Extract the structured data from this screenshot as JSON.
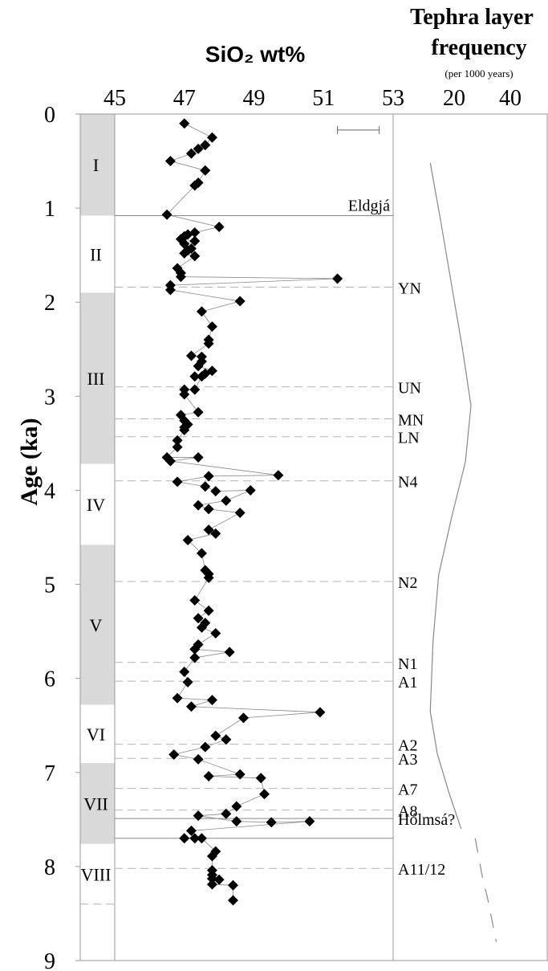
{
  "chart_data": {
    "type": "scatter",
    "title": "SiO₂ wt%",
    "ylabel": "Age (ka)",
    "xlim": [
      45,
      53
    ],
    "ylim": [
      9,
      0
    ],
    "x_ticks": [
      "45",
      "47",
      "49",
      "51",
      "53"
    ],
    "y_ticks": [
      "0",
      "1",
      "2",
      "3",
      "4",
      "5",
      "6",
      "7",
      "8",
      "9"
    ],
    "series": [
      {
        "points": [
          [
            47.0,
            0.1
          ],
          [
            47.8,
            0.25
          ],
          [
            47.6,
            0.33
          ],
          [
            47.4,
            0.37
          ],
          [
            47.2,
            0.42
          ],
          [
            46.6,
            0.5
          ],
          [
            47.6,
            0.6
          ],
          [
            47.4,
            0.73
          ],
          [
            47.3,
            0.76
          ],
          [
            46.5,
            1.07
          ],
          [
            48.0,
            1.2
          ],
          [
            47.3,
            1.26
          ],
          [
            47.1,
            1.28
          ],
          [
            47.0,
            1.3
          ],
          [
            46.9,
            1.33
          ],
          [
            47.3,
            1.35
          ],
          [
            47.0,
            1.38
          ],
          [
            47.2,
            1.43
          ],
          [
            47.1,
            1.45
          ],
          [
            47.0,
            1.48
          ],
          [
            47.3,
            1.51
          ],
          [
            46.8,
            1.64
          ],
          [
            46.9,
            1.69
          ],
          [
            46.9,
            1.73
          ],
          [
            51.4,
            1.75
          ],
          [
            46.6,
            1.82
          ],
          [
            46.6,
            1.87
          ],
          [
            48.6,
            1.99
          ],
          [
            47.5,
            2.1
          ],
          [
            47.8,
            2.26
          ],
          [
            47.7,
            2.4
          ],
          [
            47.7,
            2.44
          ],
          [
            47.2,
            2.57
          ],
          [
            47.5,
            2.58
          ],
          [
            47.5,
            2.63
          ],
          [
            47.4,
            2.68
          ],
          [
            47.8,
            2.73
          ],
          [
            47.6,
            2.76
          ],
          [
            47.3,
            2.79
          ],
          [
            47.5,
            2.79
          ],
          [
            47.3,
            2.93
          ],
          [
            47.0,
            2.93
          ],
          [
            47.0,
            2.98
          ],
          [
            47.4,
            3.17
          ],
          [
            46.9,
            3.2
          ],
          [
            47.0,
            3.26
          ],
          [
            47.1,
            3.3
          ],
          [
            47.0,
            3.33
          ],
          [
            47.0,
            3.36
          ],
          [
            46.8,
            3.47
          ],
          [
            46.8,
            3.54
          ],
          [
            46.5,
            3.65
          ],
          [
            47.4,
            3.65
          ],
          [
            46.6,
            3.69
          ],
          [
            49.7,
            3.84
          ],
          [
            47.7,
            3.85
          ],
          [
            46.8,
            3.91
          ],
          [
            47.6,
            3.96
          ],
          [
            47.9,
            4.01
          ],
          [
            48.9,
            4.0
          ],
          [
            48.2,
            4.11
          ],
          [
            47.4,
            4.16
          ],
          [
            47.7,
            4.2
          ],
          [
            48.6,
            4.24
          ],
          [
            47.7,
            4.42
          ],
          [
            47.9,
            4.46
          ],
          [
            47.1,
            4.53
          ],
          [
            47.5,
            4.67
          ],
          [
            47.6,
            4.85
          ],
          [
            47.7,
            4.89
          ],
          [
            47.7,
            4.93
          ],
          [
            47.3,
            5.17
          ],
          [
            47.7,
            5.28
          ],
          [
            47.4,
            5.36
          ],
          [
            47.6,
            5.41
          ],
          [
            47.5,
            5.46
          ],
          [
            47.9,
            5.52
          ],
          [
            47.4,
            5.64
          ],
          [
            47.3,
            5.69
          ],
          [
            48.3,
            5.72
          ],
          [
            47.3,
            5.78
          ],
          [
            47.0,
            5.93
          ],
          [
            47.1,
            6.04
          ],
          [
            46.8,
            6.21
          ],
          [
            47.8,
            6.23
          ],
          [
            47.2,
            6.3
          ],
          [
            50.9,
            6.36
          ],
          [
            48.7,
            6.42
          ],
          [
            47.9,
            6.61
          ],
          [
            48.2,
            6.65
          ],
          [
            47.6,
            6.73
          ],
          [
            46.7,
            6.81
          ],
          [
            47.4,
            6.86
          ],
          [
            48.6,
            7.02
          ],
          [
            47.7,
            7.04
          ],
          [
            49.2,
            7.06
          ],
          [
            49.3,
            7.23
          ],
          [
            48.5,
            7.36
          ],
          [
            48.2,
            7.44
          ],
          [
            47.4,
            7.46
          ],
          [
            48.5,
            7.52
          ],
          [
            49.5,
            7.53
          ],
          [
            50.6,
            7.52
          ],
          [
            47.2,
            7.62
          ],
          [
            47.3,
            7.7
          ],
          [
            47.0,
            7.7
          ],
          [
            47.5,
            7.7
          ],
          [
            47.9,
            7.84
          ],
          [
            47.8,
            7.89
          ],
          [
            47.8,
            8.04
          ],
          [
            47.8,
            8.09
          ],
          [
            47.8,
            8.13
          ],
          [
            48.0,
            8.14
          ],
          [
            47.8,
            8.19
          ],
          [
            48.4,
            8.2
          ],
          [
            48.4,
            8.36
          ]
        ]
      }
    ],
    "zones": [
      {
        "label": "I",
        "from": 0,
        "to": 1.08,
        "shaded": true
      },
      {
        "label": "II",
        "from": 1.08,
        "to": 1.9,
        "shaded": false
      },
      {
        "label": "III",
        "from": 1.9,
        "to": 3.72,
        "shaded": true
      },
      {
        "label": "IV",
        "from": 3.72,
        "to": 4.58,
        "shaded": false
      },
      {
        "label": "V",
        "from": 4.58,
        "to": 6.28,
        "shaded": true
      },
      {
        "label": "VI",
        "from": 6.28,
        "to": 6.9,
        "shaded": false
      },
      {
        "label": "VII",
        "from": 6.9,
        "to": 7.76,
        "shaded": true
      },
      {
        "label": "VIII",
        "from": 7.76,
        "to": 8.4,
        "shaded": false
      }
    ],
    "tephra_layers": [
      {
        "label": "Eldgjá",
        "age": 1.08,
        "line": "solid"
      },
      {
        "label": "YN",
        "age": 1.84,
        "line": "dashed"
      },
      {
        "label": "UN",
        "age": 2.9,
        "line": "dashed"
      },
      {
        "label": "MN",
        "age": 3.24,
        "line": "dashed"
      },
      {
        "label": "LN",
        "age": 3.43,
        "line": "dashed"
      },
      {
        "label": "N4",
        "age": 3.9,
        "line": "dashed"
      },
      {
        "label": "N2",
        "age": 4.97,
        "line": "dashed"
      },
      {
        "label": "N1",
        "age": 5.83,
        "line": "dashed"
      },
      {
        "label": "A1",
        "age": 6.03,
        "line": "dashed"
      },
      {
        "label": "A2",
        "age": 6.7,
        "line": "dashed"
      },
      {
        "label": "A3",
        "age": 6.85,
        "line": "dashed"
      },
      {
        "label": "A7",
        "age": 7.17,
        "line": "dashed"
      },
      {
        "label": "A8",
        "age": 7.4,
        "line": "dashed"
      },
      {
        "label": "Hólmsá?",
        "age": 7.49,
        "line": "solid"
      },
      {
        "label": "",
        "age": 7.7,
        "line": "solid"
      },
      {
        "label": "A11/12",
        "age": 8.02,
        "line": "dashed"
      }
    ],
    "error_bar": {
      "x_from": 51.4,
      "x_to": 52.6,
      "age": 0.17
    },
    "frequency_panel": {
      "title_line1": "Tephra layer",
      "title_line2": "frequency",
      "subtitle": "(per 1000 years)",
      "xlim": [
        0,
        50
      ],
      "x_ticks": [
        "20",
        "40"
      ],
      "curve": [
        [
          11.5,
          0.52
        ],
        [
          15,
          1.1
        ],
        [
          19,
          1.8
        ],
        [
          23,
          2.5
        ],
        [
          26,
          3.1
        ],
        [
          24,
          3.7
        ],
        [
          19,
          4.3
        ],
        [
          14.5,
          4.9
        ],
        [
          12.5,
          5.6
        ],
        [
          11.5,
          6.35
        ],
        [
          14,
          6.8
        ],
        [
          18,
          7.2
        ],
        [
          22.5,
          7.6
        ]
      ],
      "dashed_curve": [
        [
          27.5,
          7.7
        ],
        [
          30,
          8.1
        ],
        [
          32,
          8.35
        ],
        [
          35,
          8.8
        ]
      ]
    }
  },
  "layout_colors": {
    "zone_shade": "#d9d9d9",
    "marker": "#000000",
    "thin_line": "#9a9a9a",
    "dashed_line": "#b3b3b3"
  }
}
